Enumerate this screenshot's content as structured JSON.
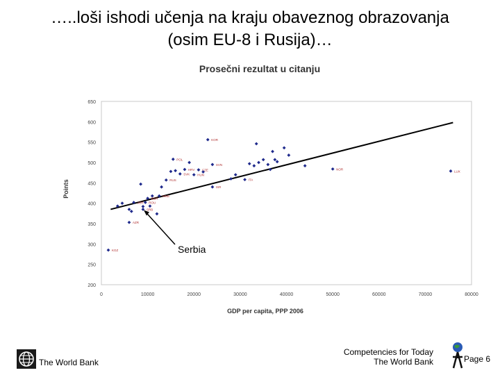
{
  "slide": {
    "title_line1": "…..loši ishodi učenja na kraju obaveznog obrazovanja",
    "title_line2": "(osim EU-8 i Rusija)…"
  },
  "footer": {
    "org_name": "The World Bank",
    "tagline_line1": "Competencies for Today",
    "tagline_line2": "The World Bank",
    "page": "Page 6"
  },
  "colors": {
    "points": "#1f2a8c",
    "labels": "#b03030",
    "trend": "#000000",
    "frame": "#c8c8c8"
  },
  "chart_data": {
    "type": "scatter",
    "title": "Prosečni rezultat u citanju",
    "xlabel": "GDP per capita, PPP 2006",
    "ylabel": "Points",
    "xlim": [
      0,
      80000
    ],
    "ylim": [
      200,
      650
    ],
    "xticks": [
      0,
      10000,
      20000,
      30000,
      40000,
      50000,
      60000,
      70000,
      80000
    ],
    "yticks": [
      200,
      250,
      300,
      350,
      400,
      450,
      500,
      550,
      600,
      650
    ],
    "grid": false,
    "trendline": {
      "x": [
        2000,
        76000
      ],
      "y": [
        385,
        598
      ]
    },
    "annotation": {
      "text": "Serbia",
      "x": 9000,
      "y": 385
    },
    "points": [
      {
        "x": 1500,
        "y": 285,
        "label": "KGZ"
      },
      {
        "x": 3500,
        "y": 393,
        "label": ""
      },
      {
        "x": 4500,
        "y": 400,
        "label": ""
      },
      {
        "x": 6000,
        "y": 353,
        "label": "AZR"
      },
      {
        "x": 6000,
        "y": 385,
        "label": ""
      },
      {
        "x": 6500,
        "y": 380,
        "label": ""
      },
      {
        "x": 7000,
        "y": 402,
        "label": "JOR"
      },
      {
        "x": 8500,
        "y": 447,
        "label": ""
      },
      {
        "x": 9000,
        "y": 392,
        "label": ""
      },
      {
        "x": 9000,
        "y": 385,
        "label": "SRB"
      },
      {
        "x": 9500,
        "y": 402,
        "label": "ROU"
      },
      {
        "x": 10000,
        "y": 412,
        "label": "BGR"
      },
      {
        "x": 10500,
        "y": 393,
        "label": ""
      },
      {
        "x": 11000,
        "y": 418,
        "label": ""
      },
      {
        "x": 12000,
        "y": 374,
        "label": ""
      },
      {
        "x": 12500,
        "y": 418,
        "label": "MNE"
      },
      {
        "x": 13000,
        "y": 440,
        "label": ""
      },
      {
        "x": 14000,
        "y": 457,
        "label": "RUS"
      },
      {
        "x": 15000,
        "y": 478,
        "label": ""
      },
      {
        "x": 15500,
        "y": 508,
        "label": "POL"
      },
      {
        "x": 16000,
        "y": 480,
        "label": ""
      },
      {
        "x": 17000,
        "y": 472,
        "label": "SVK"
      },
      {
        "x": 18000,
        "y": 483,
        "label": "HRV"
      },
      {
        "x": 19000,
        "y": 500,
        "label": ""
      },
      {
        "x": 20000,
        "y": 470,
        "label": "HUN"
      },
      {
        "x": 21000,
        "y": 482,
        "label": "CZE"
      },
      {
        "x": 22000,
        "y": 477,
        "label": ""
      },
      {
        "x": 23000,
        "y": 556,
        "label": "KOR"
      },
      {
        "x": 24000,
        "y": 495,
        "label": "SVN"
      },
      {
        "x": 24000,
        "y": 440,
        "label": "ISR"
      },
      {
        "x": 28000,
        "y": 460,
        "label": ""
      },
      {
        "x": 29000,
        "y": 470,
        "label": ""
      },
      {
        "x": 31000,
        "y": 458,
        "label": "ITA"
      },
      {
        "x": 32000,
        "y": 497,
        "label": ""
      },
      {
        "x": 33000,
        "y": 492,
        "label": ""
      },
      {
        "x": 33500,
        "y": 546,
        "label": ""
      },
      {
        "x": 34000,
        "y": 500,
        "label": ""
      },
      {
        "x": 35000,
        "y": 507,
        "label": ""
      },
      {
        "x": 36000,
        "y": 495,
        "label": ""
      },
      {
        "x": 36500,
        "y": 483,
        "label": ""
      },
      {
        "x": 37000,
        "y": 527,
        "label": ""
      },
      {
        "x": 37500,
        "y": 507,
        "label": ""
      },
      {
        "x": 38000,
        "y": 502,
        "label": ""
      },
      {
        "x": 39500,
        "y": 536,
        "label": ""
      },
      {
        "x": 40500,
        "y": 518,
        "label": ""
      },
      {
        "x": 44000,
        "y": 492,
        "label": ""
      },
      {
        "x": 50000,
        "y": 484,
        "label": "NOR"
      },
      {
        "x": 75500,
        "y": 479,
        "label": "LUX"
      }
    ]
  }
}
